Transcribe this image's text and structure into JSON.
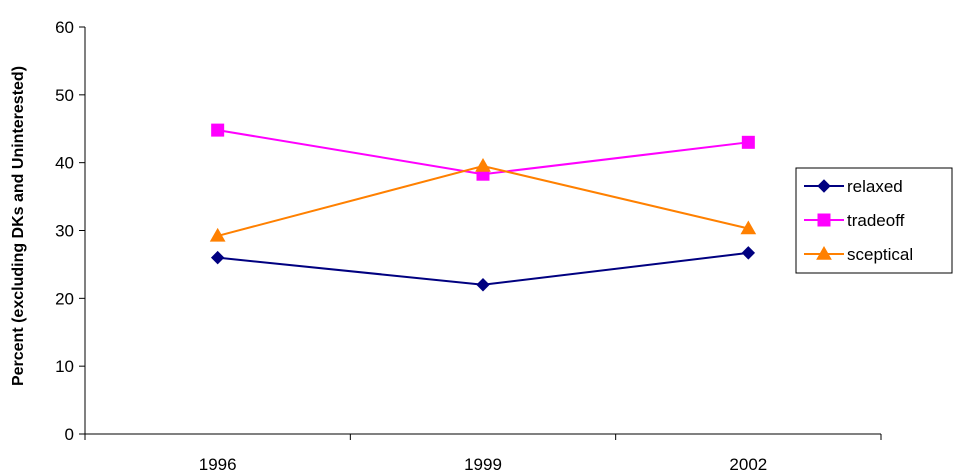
{
  "chart_data": {
    "type": "line",
    "title": "",
    "xlabel": "",
    "ylabel": "Percent (excluding DKs and Uninterested)",
    "categories": [
      "1996",
      "1999",
      "2002"
    ],
    "ylim": [
      0,
      60
    ],
    "yticks": [
      0,
      10,
      20,
      30,
      40,
      50,
      60
    ],
    "grid": false,
    "legend_position": "right",
    "series": [
      {
        "name": "relaxed",
        "values": [
          26,
          22,
          26.7
        ],
        "color": "#000080",
        "marker": "diamond"
      },
      {
        "name": "tradeoff",
        "values": [
          44.8,
          38.3,
          43
        ],
        "color": "#FF00FF",
        "marker": "square"
      },
      {
        "name": "sceptical",
        "values": [
          29.2,
          39.5,
          30.3
        ],
        "color": "#FF8000",
        "marker": "triangle"
      }
    ]
  }
}
